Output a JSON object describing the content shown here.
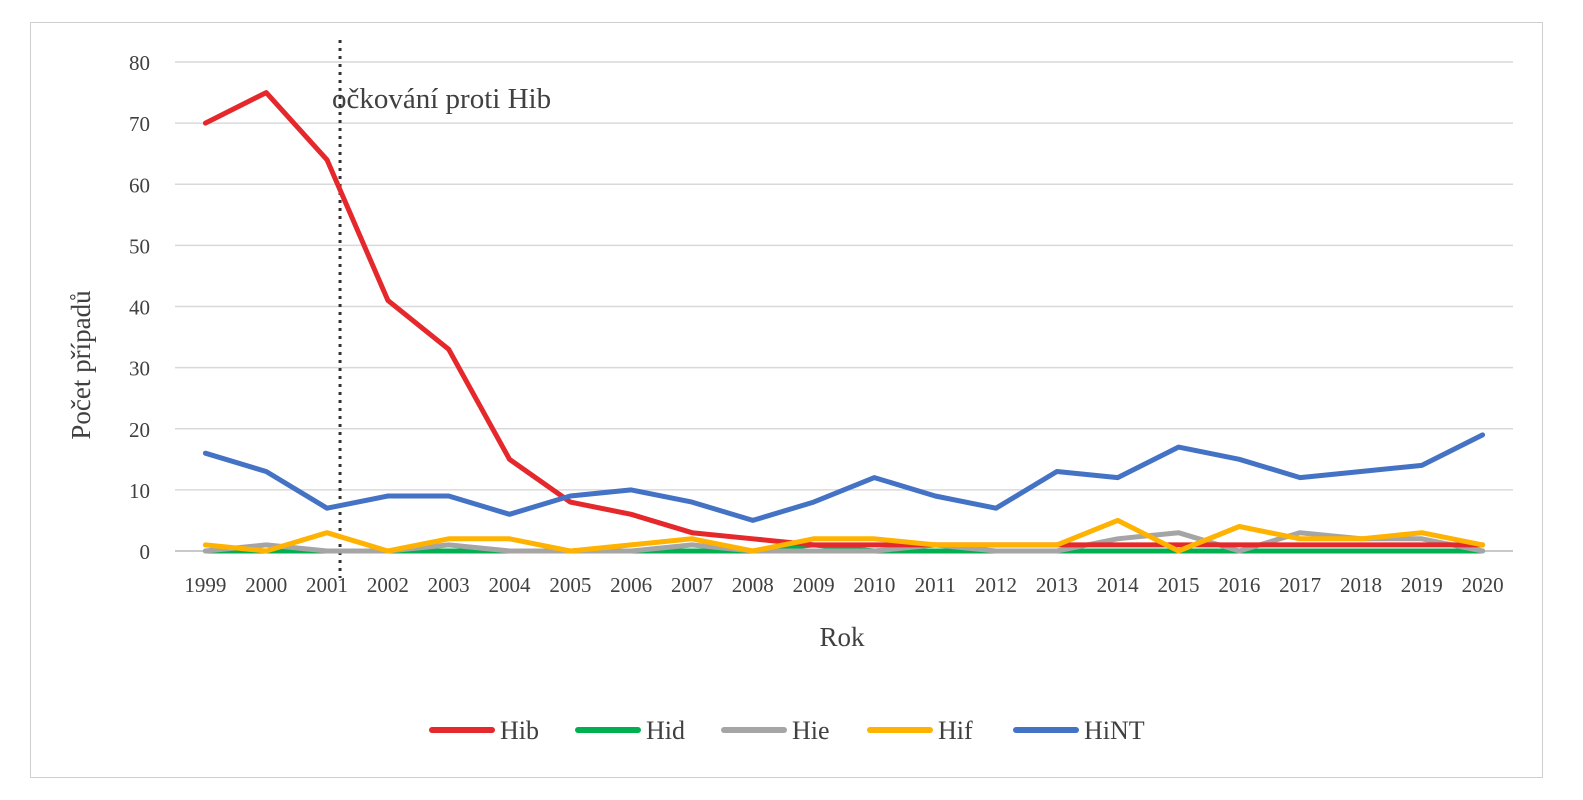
{
  "chart_data": {
    "type": "line",
    "xlabel": "Rok",
    "ylabel": "Počet případů",
    "ylim": [
      0,
      80
    ],
    "yticks": [
      0,
      10,
      20,
      30,
      40,
      50,
      60,
      70,
      80
    ],
    "grid": true,
    "legend_position": "bottom",
    "categories": [
      "1999",
      "2000",
      "2001",
      "2002",
      "2003",
      "2004",
      "2005",
      "2006",
      "2007",
      "2008",
      "2009",
      "2010",
      "2011",
      "2012",
      "2013",
      "2014",
      "2015",
      "2016",
      "2017",
      "2018",
      "2019",
      "2020"
    ],
    "annotation": {
      "text": "očkování proti Hib",
      "x": "2001"
    },
    "series": [
      {
        "name": "Hid",
        "color": "#00b050",
        "values": [
          0,
          0,
          0,
          0,
          0,
          0,
          0,
          0,
          0,
          0,
          1,
          0,
          0,
          0,
          0,
          0,
          0,
          0,
          0,
          0,
          0,
          0
        ]
      },
      {
        "name": "Hie",
        "color": "#a5a5a5",
        "values": [
          0,
          1,
          0,
          0,
          1,
          0,
          0,
          0,
          1,
          0,
          0,
          0,
          1,
          0,
          0,
          2,
          3,
          0,
          3,
          2,
          2,
          0
        ]
      },
      {
        "name": "Hib",
        "color": "#e5282b",
        "values": [
          70,
          75,
          64,
          41,
          33,
          15,
          8,
          6,
          3,
          2,
          1,
          1,
          1,
          1,
          1,
          1,
          1,
          1,
          1,
          1,
          1,
          1
        ]
      },
      {
        "name": "Hif",
        "color": "#ffb300",
        "values": [
          1,
          0,
          3,
          0,
          2,
          2,
          0,
          1,
          2,
          0,
          2,
          2,
          1,
          1,
          1,
          5,
          0,
          4,
          2,
          2,
          3,
          1
        ]
      },
      {
        "name": "HiNT",
        "color": "#4472c4",
        "values": [
          16,
          13,
          7,
          9,
          9,
          6,
          9,
          10,
          8,
          5,
          8,
          12,
          9,
          7,
          13,
          12,
          17,
          15,
          12,
          13,
          14,
          19
        ]
      }
    ],
    "legend_order": [
      "Hib",
      "Hid",
      "Hie",
      "Hif",
      "HiNT"
    ]
  }
}
